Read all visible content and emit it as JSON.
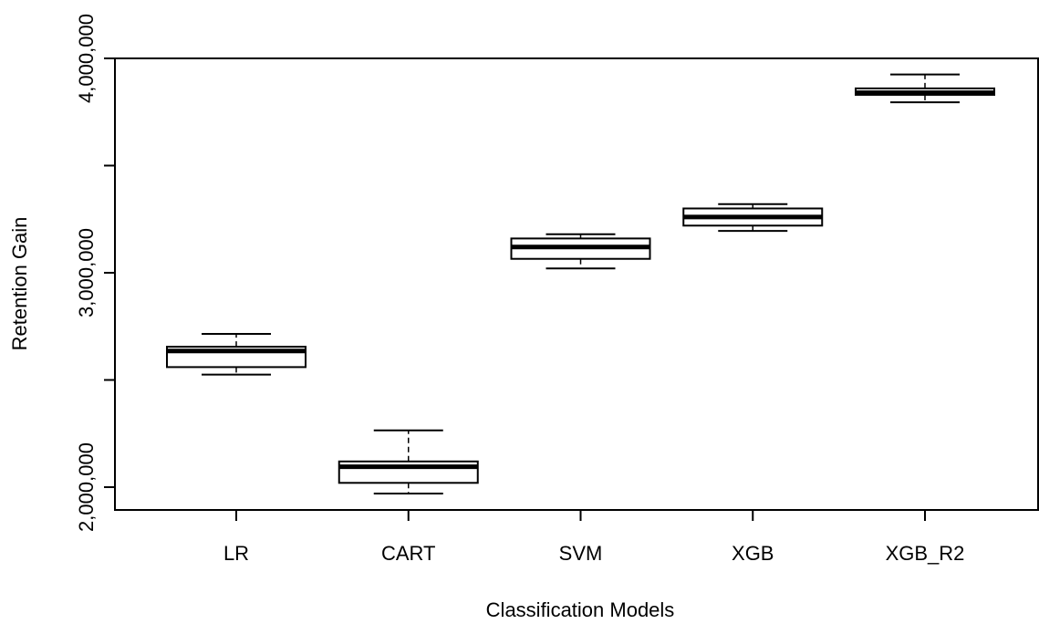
{
  "chart_data": {
    "type": "boxplot",
    "title": "",
    "xlabel": "Classification Models",
    "ylabel": "Retention Gain",
    "ylim": [
      1900000,
      4000000
    ],
    "y_ticks": [
      2000000,
      2500000,
      3000000,
      3500000,
      4000000
    ],
    "y_tick_labels": [
      "2,000,000",
      "",
      "3,000,000",
      "",
      "4,000,000"
    ],
    "grid": false,
    "legend": "none",
    "categories": [
      "LR",
      "CART",
      "SVM",
      "XGB",
      "XGB_R2"
    ],
    "boxes": [
      {
        "category": "LR",
        "min": 2525000,
        "q1": 2560000,
        "median": 2635000,
        "q3": 2655000,
        "max": 2715000
      },
      {
        "category": "CART",
        "min": 1970000,
        "q1": 2020000,
        "median": 2095000,
        "q3": 2120000,
        "max": 2265000
      },
      {
        "category": "SVM",
        "min": 3020000,
        "q1": 3065000,
        "median": 3120000,
        "q3": 3160000,
        "max": 3180000
      },
      {
        "category": "XGB",
        "min": 3195000,
        "q1": 3220000,
        "median": 3260000,
        "q3": 3300000,
        "max": 3320000
      },
      {
        "category": "XGB_R2",
        "min": 3795000,
        "q1": 3830000,
        "median": 3840000,
        "q3": 3860000,
        "max": 3925000
      }
    ]
  }
}
